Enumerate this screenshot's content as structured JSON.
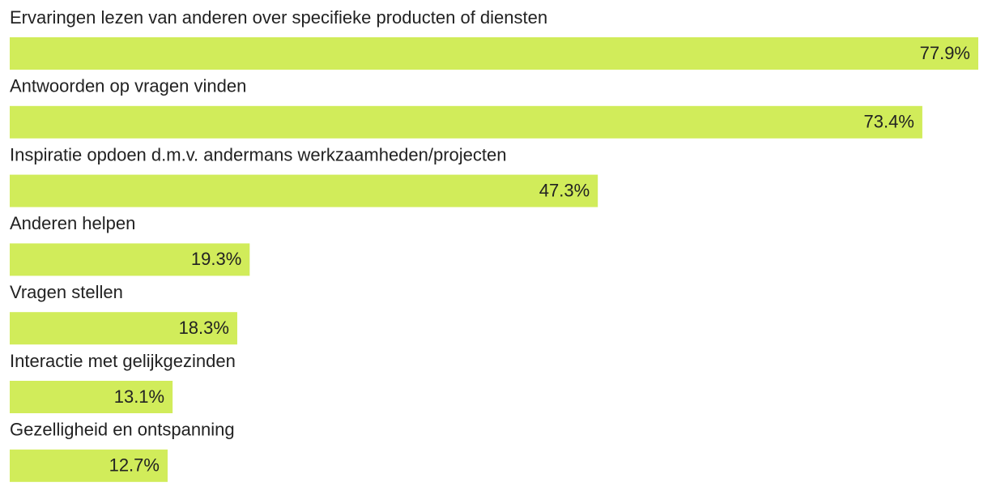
{
  "chart_data": {
    "type": "hbar",
    "categories": [
      "Ervaringen lezen van anderen over specifieke producten of diensten",
      "Antwoorden op vragen vinden",
      "Inspiratie opdoen d.m.v. andermans werkzaamheden/projecten",
      "Anderen helpen",
      "Vragen stellen",
      "Interactie met gelijkgezinden",
      "Gezelligheid en ontspanning"
    ],
    "values": [
      77.9,
      73.4,
      47.3,
      19.3,
      18.3,
      13.1,
      12.7
    ],
    "value_labels": [
      "77.9%",
      "73.4%",
      "47.3%",
      "19.3%",
      "18.3%",
      "13.1%",
      "12.7%"
    ],
    "color": "#d1ec5a"
  }
}
